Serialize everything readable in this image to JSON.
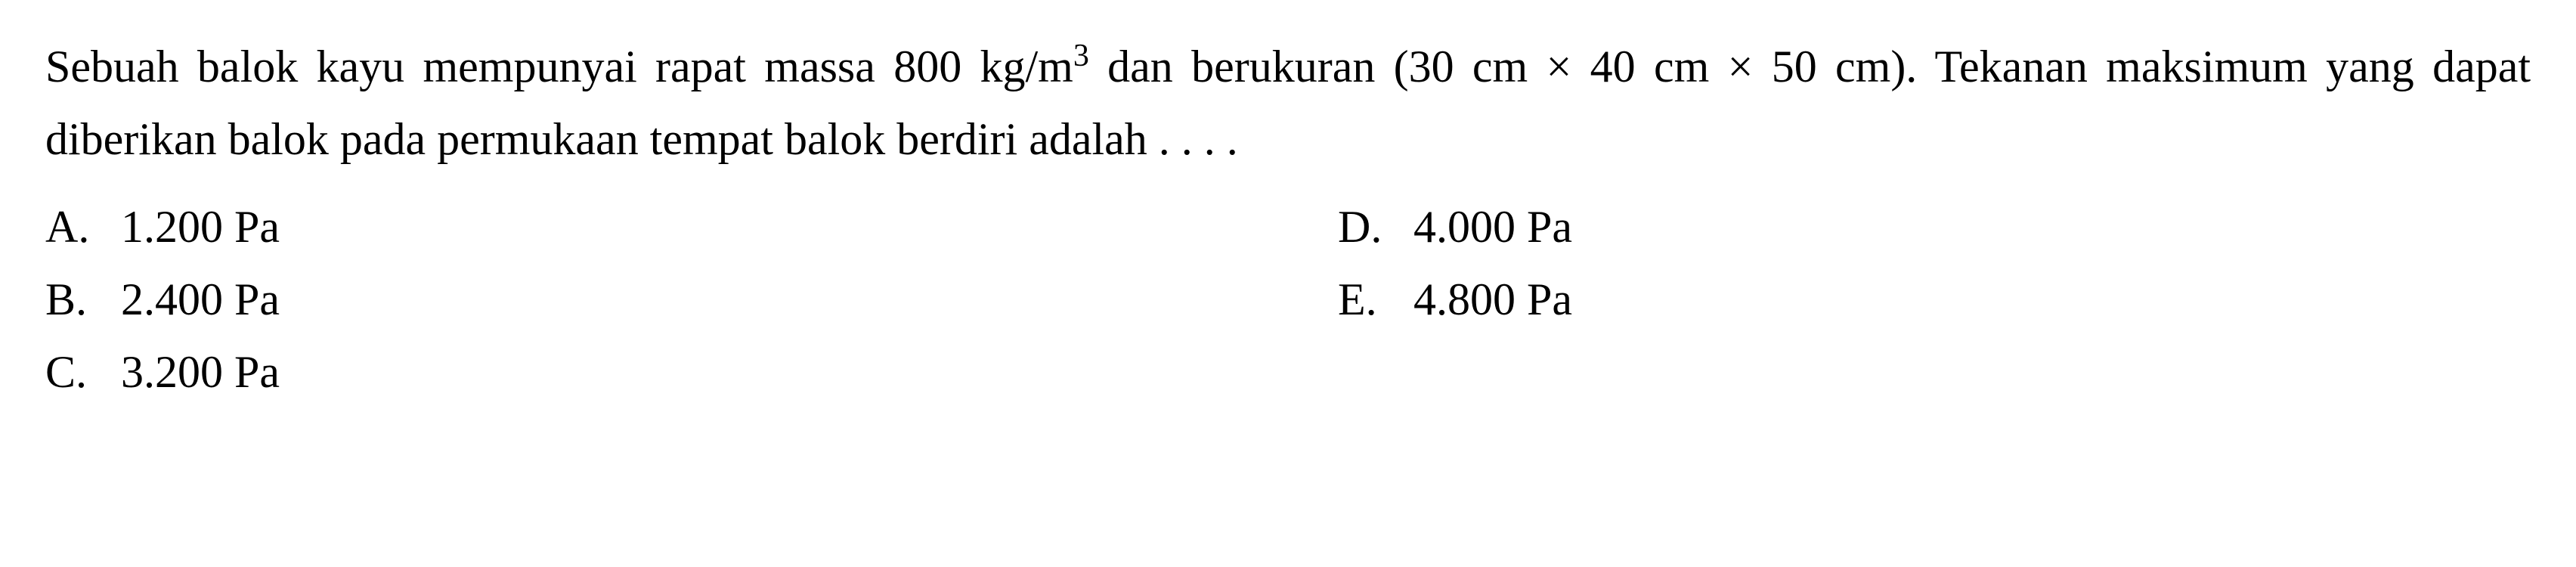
{
  "question": {
    "text_parts": {
      "part1": "Sebuah balok kayu mempunyai rapat massa 800 kg/m",
      "superscript": "3",
      "part2": " dan berukuran (30 cm × 40 cm × 50 cm). Tekanan maksimum yang dapat diberikan balok pada permukaan tempat balok berdiri adalah . . . ."
    }
  },
  "options": {
    "left_column": [
      {
        "letter": "A.",
        "value": "1.200 Pa"
      },
      {
        "letter": "B.",
        "value": "2.400 Pa"
      },
      {
        "letter": "C.",
        "value": "3.200 Pa"
      }
    ],
    "right_column": [
      {
        "letter": "D.",
        "value": "4.000 Pa"
      },
      {
        "letter": "E.",
        "value": "4.800 Pa"
      }
    ]
  },
  "styling": {
    "font_family": "Georgia, Times New Roman, serif",
    "font_size_pt": 60,
    "text_color": "#000000",
    "background_color": "#ffffff",
    "line_height": 1.6
  }
}
